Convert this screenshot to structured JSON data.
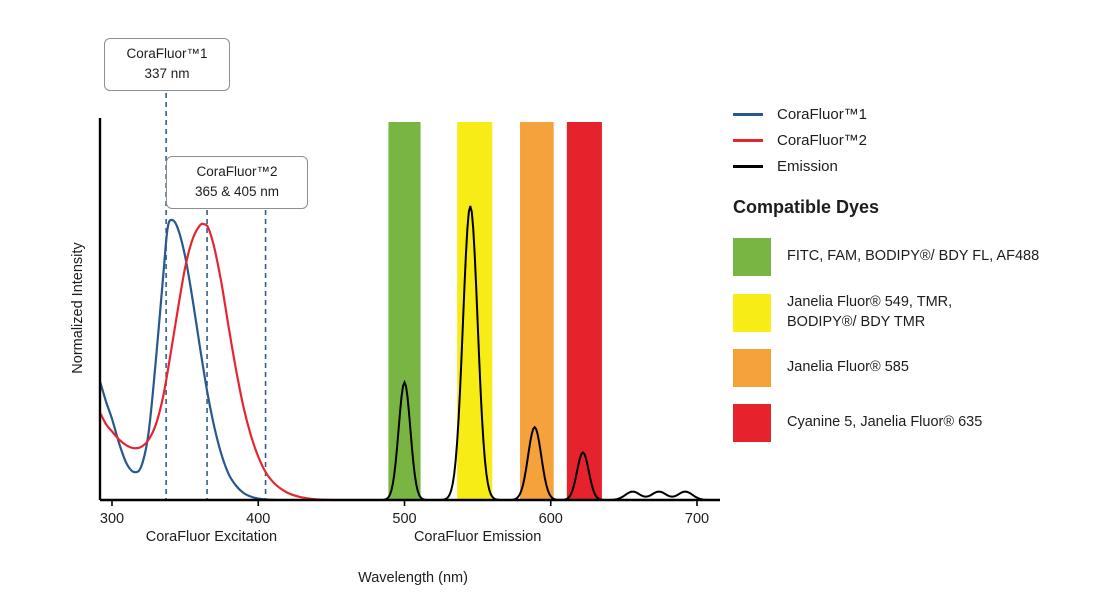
{
  "chart_data": {
    "type": "line",
    "title": "",
    "xlabel": "Wavelength (nm)",
    "ylabel": "Normalized Intensity",
    "x_ticks": [
      300,
      400,
      500,
      600,
      700
    ],
    "x_range": [
      292,
      715
    ],
    "y_range": [
      0,
      1.1
    ],
    "grid": false,
    "axis_sublabels": [
      {
        "text": "CoraFluor Excitation",
        "nm": 368
      },
      {
        "text": "CoraFluor Emission",
        "nm": 550
      }
    ],
    "series": [
      {
        "name": "CoraFluor™1",
        "role": "excitation",
        "color": "#27598E",
        "points": [
          [
            292,
            0.42
          ],
          [
            296,
            0.35
          ],
          [
            300,
            0.29
          ],
          [
            305,
            0.2
          ],
          [
            310,
            0.13
          ],
          [
            315,
            0.1
          ],
          [
            320,
            0.12
          ],
          [
            325,
            0.24
          ],
          [
            330,
            0.5
          ],
          [
            335,
            0.8
          ],
          [
            338,
            0.97
          ],
          [
            341,
            1.0
          ],
          [
            345,
            0.97
          ],
          [
            350,
            0.87
          ],
          [
            355,
            0.72
          ],
          [
            360,
            0.55
          ],
          [
            365,
            0.39
          ],
          [
            370,
            0.26
          ],
          [
            375,
            0.16
          ],
          [
            380,
            0.09
          ],
          [
            385,
            0.05
          ],
          [
            390,
            0.025
          ],
          [
            395,
            0.012
          ],
          [
            400,
            0.005
          ],
          [
            405,
            0.002
          ],
          [
            412,
            0.0
          ]
        ]
      },
      {
        "name": "CoraFluor™2",
        "role": "excitation",
        "color": "#E52630",
        "points": [
          [
            292,
            0.31
          ],
          [
            296,
            0.27
          ],
          [
            300,
            0.245
          ],
          [
            305,
            0.215
          ],
          [
            310,
            0.195
          ],
          [
            315,
            0.185
          ],
          [
            320,
            0.19
          ],
          [
            325,
            0.215
          ],
          [
            330,
            0.27
          ],
          [
            335,
            0.37
          ],
          [
            340,
            0.52
          ],
          [
            345,
            0.68
          ],
          [
            350,
            0.83
          ],
          [
            355,
            0.93
          ],
          [
            360,
            0.98
          ],
          [
            363,
            0.985
          ],
          [
            366,
            0.97
          ],
          [
            370,
            0.9
          ],
          [
            375,
            0.77
          ],
          [
            380,
            0.61
          ],
          [
            385,
            0.46
          ],
          [
            390,
            0.33
          ],
          [
            395,
            0.23
          ],
          [
            400,
            0.155
          ],
          [
            405,
            0.1
          ],
          [
            410,
            0.065
          ],
          [
            415,
            0.042
          ],
          [
            420,
            0.026
          ],
          [
            425,
            0.016
          ],
          [
            430,
            0.009
          ],
          [
            436,
            0.004
          ],
          [
            444,
            0.001
          ],
          [
            452,
            0.0
          ]
        ]
      },
      {
        "name": "Emission",
        "role": "emission",
        "color": "#000000",
        "peaks": [
          {
            "center": 500,
            "height": 0.42,
            "sigma": 4
          },
          {
            "center": 545,
            "height": 1.05,
            "sigma": 5
          },
          {
            "center": 589,
            "height": 0.26,
            "sigma": 4.5
          },
          {
            "center": 622,
            "height": 0.17,
            "sigma": 4
          },
          {
            "center": 656,
            "height": 0.03,
            "sigma": 5
          },
          {
            "center": 674,
            "height": 0.03,
            "sigma": 5
          },
          {
            "center": 692,
            "height": 0.03,
            "sigma": 5
          }
        ]
      }
    ],
    "bands": [
      {
        "nm_min": 489,
        "nm_max": 511,
        "color": "#78B543",
        "label": "FITC, FAM, BODIPY®/ BDY FL, AF488"
      },
      {
        "nm_min": 536,
        "nm_max": 560,
        "color": "#F8EC16",
        "label": "Janelia Fluor® 549, TMR, BODIPY®/ BDY TMR"
      },
      {
        "nm_min": 579,
        "nm_max": 602,
        "color": "#F5A13C",
        "label": "Janelia Fluor® 585"
      },
      {
        "nm_min": 611,
        "nm_max": 635,
        "color": "#E6222D",
        "label": "Cyanine 5, Janelia Fluor® 635"
      }
    ],
    "markers": {
      "color": "#2D5F94",
      "lines_nm": [
        337,
        365,
        405
      ]
    }
  },
  "callouts": [
    {
      "line1": "CoraFluor™1",
      "line2": "337 nm"
    },
    {
      "line1": "CoraFluor™2",
      "line2": "365 & 405 nm"
    }
  ],
  "legend": {
    "items": [
      {
        "label": "CoraFluor™1",
        "color": "#27598E"
      },
      {
        "label": "CoraFluor™2",
        "color": "#E52630"
      },
      {
        "label": "Emission",
        "color": "#000000"
      }
    ]
  },
  "dyes": {
    "title": "Compatible Dyes",
    "items": [
      {
        "color": "#78B543",
        "line1": "FITC, FAM, BODIPY®/ BDY FL, AF488",
        "line2": ""
      },
      {
        "color": "#F8EC16",
        "line1": "Janelia Fluor® 549, TMR,",
        "line2": "BODIPY®/ BDY TMR"
      },
      {
        "color": "#F5A13C",
        "line1": "Janelia Fluor® 585",
        "line2": ""
      },
      {
        "color": "#E6222D",
        "line1": "Cyanine 5, Janelia Fluor® 635",
        "line2": ""
      }
    ]
  }
}
